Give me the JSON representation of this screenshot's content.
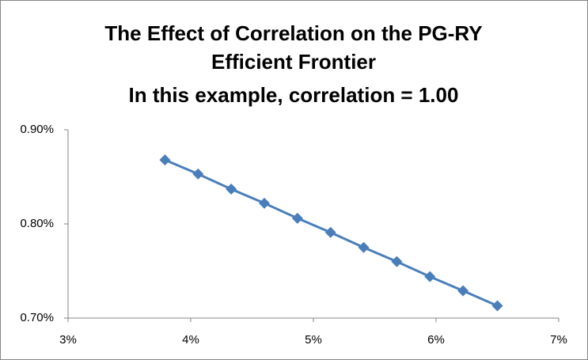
{
  "chart_data": {
    "type": "line",
    "title": "The Effect of Correlation on the PG-RY Efficient Frontier",
    "subtitle": "In this example, correlation = 1.00",
    "x": [
      3.79,
      4.06,
      4.33,
      4.6,
      4.87,
      5.14,
      5.41,
      5.68,
      5.95,
      6.22,
      6.5
    ],
    "values": [
      0.868,
      0.853,
      0.837,
      0.822,
      0.806,
      0.791,
      0.775,
      0.76,
      0.744,
      0.729,
      0.713
    ],
    "color": "#4a7ebb",
    "marker": "diamond",
    "xlim": [
      3,
      7
    ],
    "xticks": [
      {
        "value": 3,
        "label": "3%"
      },
      {
        "value": 4,
        "label": "4%"
      },
      {
        "value": 5,
        "label": "5%"
      },
      {
        "value": 6,
        "label": "6%"
      },
      {
        "value": 7,
        "label": "7%"
      }
    ],
    "ylim": [
      0.7,
      0.9
    ],
    "yticks": [
      {
        "value": 0.7,
        "label": "0.70%"
      },
      {
        "value": 0.8,
        "label": "0.80%"
      },
      {
        "value": 0.9,
        "label": "0.90%"
      }
    ],
    "grid": false
  }
}
